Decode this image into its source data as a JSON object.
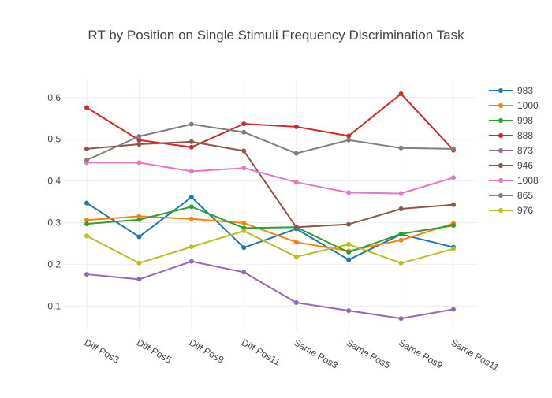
{
  "chart_data": {
    "type": "line",
    "title": "RT by Position on Single Stimuli Frequency Discrimination Task",
    "xlabel": "",
    "ylabel": "",
    "categories": [
      "Diff Pos3",
      "Diff Pos5",
      "Diff Pos9",
      "Diff Pos11",
      "Same Pos3",
      "Same Pos5",
      "Same Pos9",
      "Same Pos11"
    ],
    "ylim": [
      0.04,
      0.645
    ],
    "yticks": [
      0.1,
      0.2,
      0.3,
      0.4,
      0.5,
      0.6
    ],
    "ytick_labels": [
      "0.1",
      "0.2",
      "0.3",
      "0.4",
      "0.5",
      "0.6"
    ],
    "grid": true,
    "legend_position": "right",
    "series": [
      {
        "name": "983",
        "color": "#1f77b4",
        "values": [
          0.347,
          0.266,
          0.361,
          0.24,
          0.285,
          0.211,
          0.272,
          0.241
        ]
      },
      {
        "name": "1000",
        "color": "#ff7f0e",
        "values": [
          0.306,
          0.315,
          0.309,
          0.299,
          0.253,
          0.232,
          0.258,
          0.298
        ]
      },
      {
        "name": "998",
        "color": "#2ca02c",
        "values": [
          0.297,
          0.307,
          0.338,
          0.287,
          0.289,
          0.229,
          0.273,
          0.293
        ]
      },
      {
        "name": "888",
        "color": "#d62728",
        "values": [
          0.576,
          0.498,
          0.481,
          0.537,
          0.53,
          0.508,
          0.609,
          0.474
        ]
      },
      {
        "name": "873",
        "color": "#9467bd",
        "values": [
          0.176,
          0.164,
          0.207,
          0.181,
          0.108,
          0.089,
          0.07,
          0.092
        ]
      },
      {
        "name": "946",
        "color": "#8c564b",
        "values": [
          0.477,
          0.488,
          0.494,
          0.472,
          0.289,
          0.296,
          0.333,
          0.343
        ]
      },
      {
        "name": "1008",
        "color": "#e377c2",
        "values": [
          0.444,
          0.444,
          0.423,
          0.431,
          0.397,
          0.372,
          0.37,
          0.408
        ]
      },
      {
        "name": "865",
        "color": "#7f7f7f",
        "values": [
          0.45,
          0.507,
          0.536,
          0.517,
          0.466,
          0.498,
          0.479,
          0.477
        ]
      },
      {
        "name": "976",
        "color": "#bcbd22",
        "values": [
          0.268,
          0.203,
          0.242,
          0.28,
          0.218,
          0.248,
          0.203,
          0.237
        ]
      }
    ]
  }
}
